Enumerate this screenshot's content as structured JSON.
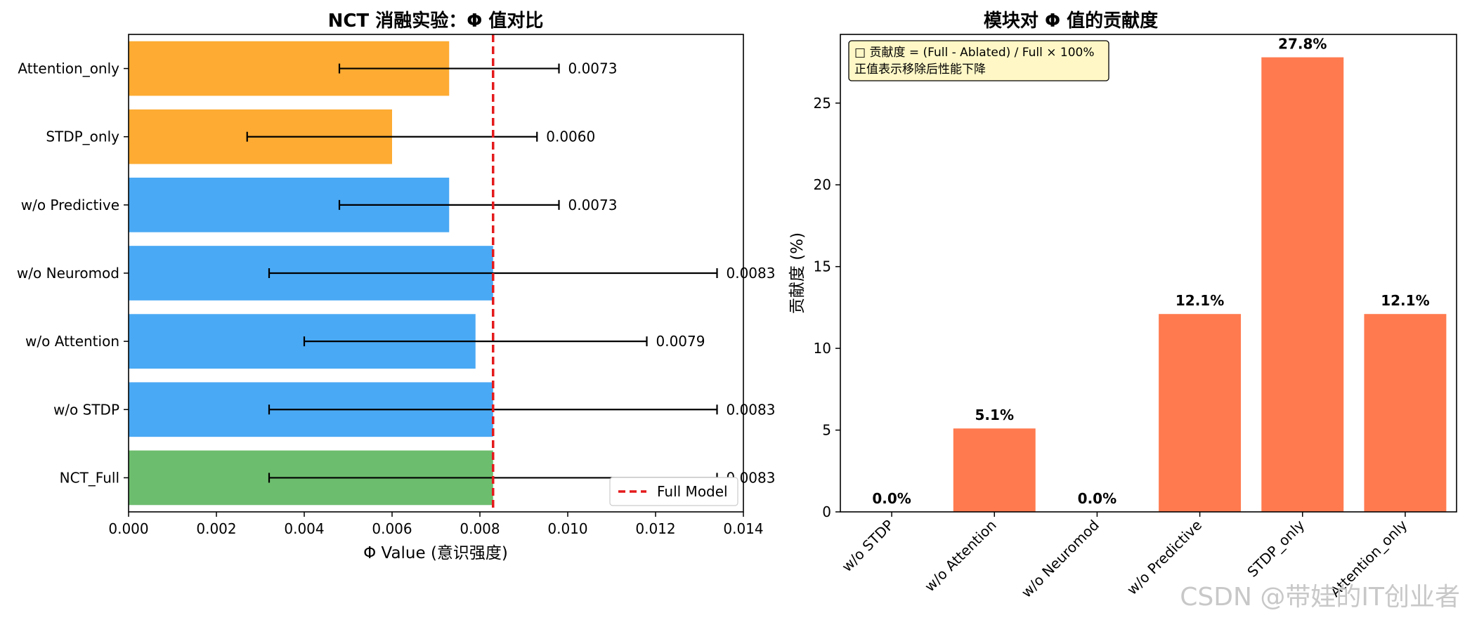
{
  "chart_data": [
    {
      "type": "bar",
      "orientation": "horizontal",
      "title": "NCT 消融实验：Φ 值对比",
      "xlabel": "Φ Value (意识强度)",
      "ylabel": "",
      "xlim": [
        0,
        0.014
      ],
      "xticks": [
        "0.000",
        "0.002",
        "0.004",
        "0.006",
        "0.008",
        "0.010",
        "0.012",
        "0.014"
      ],
      "categories": [
        "NCT_Full",
        "w/o STDP",
        "w/o Attention",
        "w/o Neuromod",
        "w/o Predictive",
        "STDP_only",
        "Attention_only"
      ],
      "values": [
        0.0083,
        0.0083,
        0.0079,
        0.0083,
        0.0073,
        0.006,
        0.0073
      ],
      "value_labels": [
        "0.0083",
        "0.0083",
        "0.0079",
        "0.0083",
        "0.0073",
        "0.0060",
        "0.0073"
      ],
      "errors": [
        0.0051,
        0.0051,
        0.0039,
        0.0051,
        0.0025,
        0.0033,
        0.0025
      ],
      "colors": [
        "#6dbd6e",
        "#4aa9f4",
        "#4aa9f4",
        "#4aa9f4",
        "#4aa9f4",
        "#fdab32",
        "#fdab32"
      ],
      "reference_line": {
        "value": 0.0083,
        "label": "Full Model",
        "color": "#e41a1c",
        "style": "dashed"
      },
      "legend": {
        "position": "lower-right",
        "entries": [
          "Full Model"
        ]
      },
      "grid": false
    },
    {
      "type": "bar",
      "title": "模块对 Φ 值的贡献度",
      "xlabel": "",
      "ylabel": "贡献度 (%)",
      "ylim": [
        0,
        29.2
      ],
      "yticks": [
        "0",
        "5",
        "10",
        "15",
        "20",
        "25"
      ],
      "categories": [
        "w/o STDP",
        "w/o Attention",
        "w/o Neuromod",
        "w/o Predictive",
        "STDP_only",
        "Attention_only"
      ],
      "values": [
        0.0,
        5.1,
        0.0,
        12.1,
        27.8,
        12.1
      ],
      "value_labels": [
        "0.0%",
        "5.1%",
        "0.0%",
        "12.1%",
        "27.8%",
        "12.1%"
      ],
      "color": "#ff7a4f",
      "annotation": [
        "□ 贡献度 = (Full - Ablated) / Full × 100%",
        "正值表示移除后性能下降"
      ],
      "grid": false
    }
  ],
  "watermark": "CSDN @带娃的IT创业者"
}
